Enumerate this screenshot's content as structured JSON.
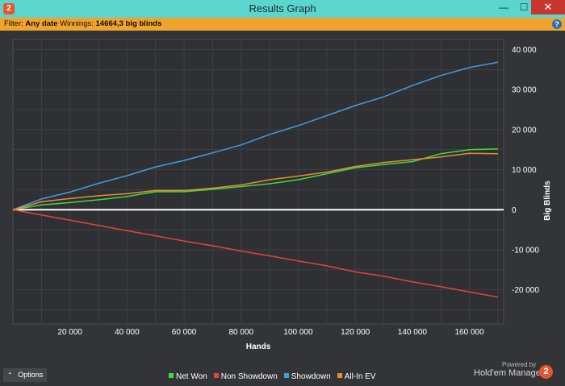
{
  "window": {
    "title": "Results Graph",
    "app_icon_glyph": "2",
    "minimize_glyph": "—",
    "maximize_glyph": "☐",
    "close_glyph": "✕"
  },
  "filter_bar": {
    "filter_label": "Filter:",
    "filter_value": "Any date",
    "winnings_label": "Winnings:",
    "winnings_value": "14664,3 big blinds",
    "help_glyph": "?"
  },
  "footer": {
    "options_label": "Options",
    "options_chevron": "⌃",
    "powered_by": "Powered by",
    "brand_name": "Hold'em Manager",
    "brand_logo_glyph": "2"
  },
  "chart_data": {
    "type": "line",
    "xlabel": "Hands",
    "ylabel": "Big Blinds",
    "xlim": [
      0,
      172000
    ],
    "ylim": [
      -28500,
      42500
    ],
    "x_ticks": [
      20000,
      40000,
      60000,
      80000,
      100000,
      120000,
      140000,
      160000
    ],
    "x_tick_labels": [
      "20 000",
      "40 000",
      "60 000",
      "80 000",
      "100 000",
      "120 000",
      "140 000",
      "160 000"
    ],
    "y_ticks": [
      40000,
      30000,
      20000,
      10000,
      0,
      -10000,
      -20000
    ],
    "y_tick_labels": [
      "40 000",
      "30 000",
      "20 000",
      "10 000",
      "0",
      "-10 000",
      "-20 000"
    ],
    "grid": true,
    "legend_position": "bottom-center",
    "x": [
      0,
      10000,
      20000,
      30000,
      40000,
      50000,
      60000,
      70000,
      80000,
      90000,
      100000,
      110000,
      120000,
      130000,
      140000,
      150000,
      160000,
      170000
    ],
    "series": [
      {
        "name": "Net Won",
        "color": "#3ddc3d",
        "values": [
          0,
          1200,
          1800,
          2500,
          3300,
          4500,
          4500,
          5100,
          5800,
          6500,
          7500,
          9000,
          10500,
          11300,
          12000,
          14000,
          15000,
          15200
        ]
      },
      {
        "name": "Non Showdown",
        "color": "#e0443e",
        "values": [
          0,
          -1300,
          -2600,
          -3900,
          -5200,
          -6500,
          -7800,
          -9000,
          -10300,
          -11500,
          -12800,
          -14000,
          -15500,
          -16600,
          -18000,
          -19200,
          -20500,
          -21800
        ]
      },
      {
        "name": "Showdown",
        "color": "#3f9de0",
        "values": [
          0,
          2700,
          4400,
          6600,
          8500,
          10700,
          12300,
          14200,
          16200,
          18800,
          21000,
          23500,
          26000,
          28200,
          31000,
          33500,
          35500,
          36800
        ]
      },
      {
        "name": "All-In EV",
        "color": "#ec8a35",
        "values": [
          0,
          2000,
          2800,
          3500,
          4000,
          4800,
          4800,
          5400,
          6200,
          7500,
          8400,
          9400,
          10800,
          11800,
          12500,
          13200,
          14100,
          14000
        ]
      }
    ],
    "zero_line_color": "#ffffff"
  }
}
